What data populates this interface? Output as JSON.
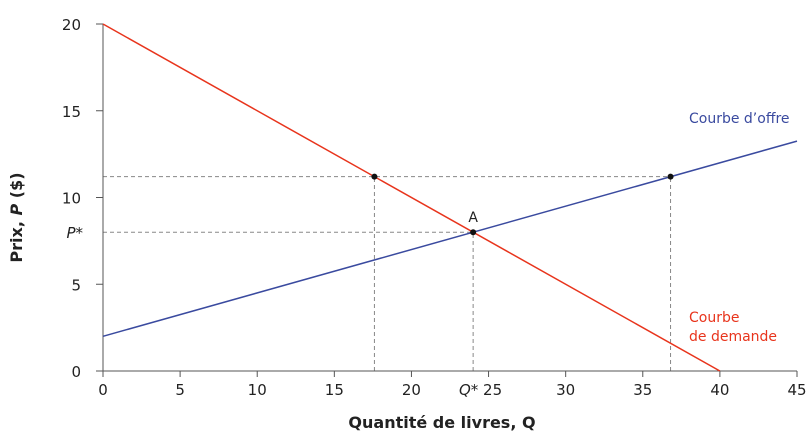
{
  "chart_data": {
    "type": "line",
    "xlabel": "Quantité de livres, Q",
    "ylabel_parts": [
      "Prix, ",
      "P",
      " ($)"
    ],
    "ylabel": "Prix, P ($)",
    "xlim": [
      0,
      45
    ],
    "ylim": [
      0,
      20
    ],
    "xticks": [
      0,
      5,
      10,
      15,
      20,
      25,
      30,
      35,
      40,
      45
    ],
    "yticks": [
      0,
      5,
      10,
      15,
      20
    ],
    "grid": false,
    "series": [
      {
        "name": "Courbe de demande",
        "label_lines": [
          "Courbe",
          "de demande"
        ],
        "color": "#e8341c",
        "x": [
          0,
          40
        ],
        "y": [
          20,
          0
        ]
      },
      {
        "name": "Courbe d’offre",
        "label_lines": [
          "Courbe d’offre"
        ],
        "color": "#3a4a9f",
        "x": [
          0,
          45
        ],
        "y": [
          2,
          13.25
        ]
      }
    ],
    "equilibrium": {
      "label": "A",
      "q": 24,
      "p": 8,
      "q_label": "Q*",
      "p_label": "P*"
    },
    "points": [
      {
        "q": 17.6,
        "p": 11.2
      },
      {
        "q": 36.8,
        "p": 11.2
      },
      {
        "q": 24,
        "p": 8
      }
    ],
    "dashed_lines": [
      {
        "p": 11.2,
        "q_from": 0,
        "q_to": 36.8
      },
      {
        "p": 8,
        "q_from": 0,
        "q_to": 24
      },
      {
        "q": 17.6,
        "p_from": 0,
        "p_to": 11.2
      },
      {
        "q": 36.8,
        "p_from": 0,
        "p_to": 11.2
      },
      {
        "q": 24,
        "p_from": 0,
        "p_to": 8
      }
    ]
  }
}
